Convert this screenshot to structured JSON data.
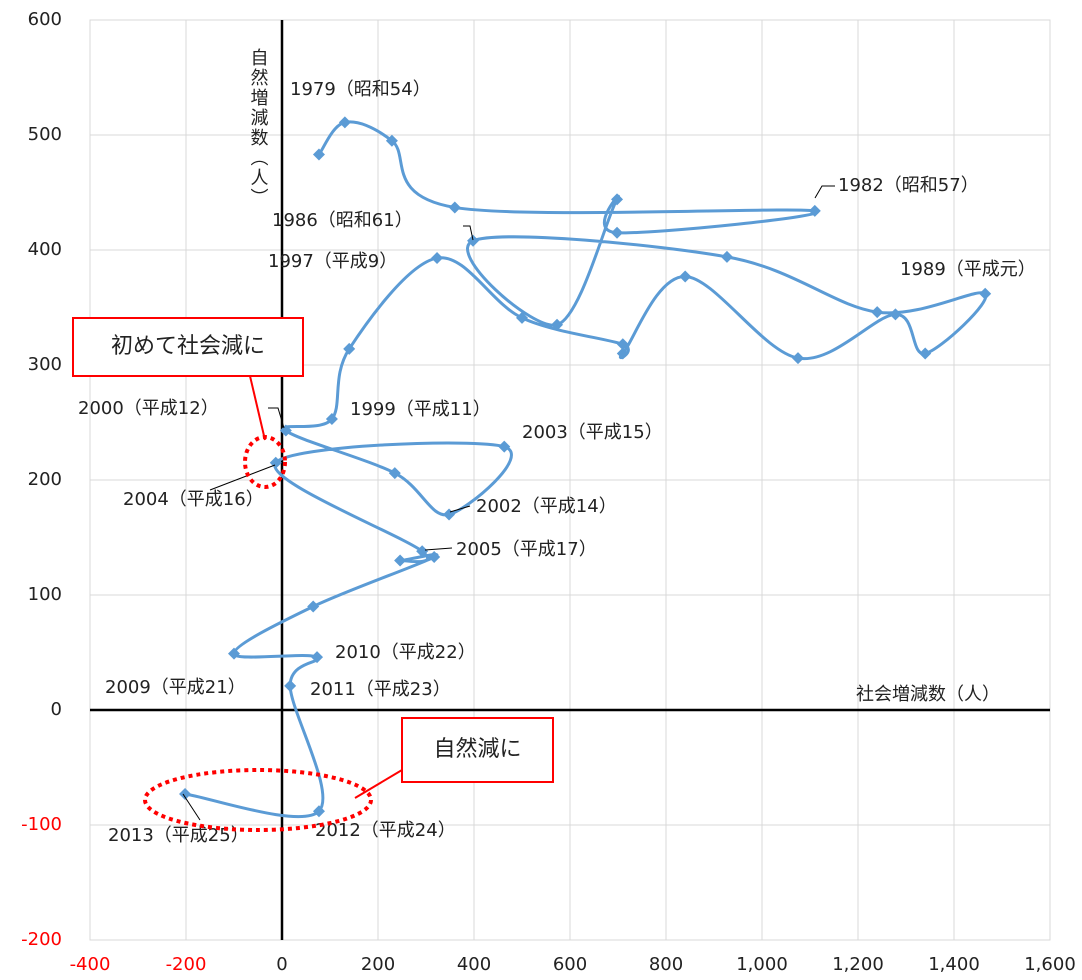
{
  "chart_data": {
    "type": "scatter",
    "line": "smooth",
    "x_label": "社会増減数（人）",
    "y_label": "自然増減数（人）",
    "color": "#5b9bd5",
    "x": [
      77,
      131,
      229,
      360,
      1110,
      698,
      698,
      573,
      398,
      927,
      1240,
      1465,
      1340,
      1278,
      1075,
      840,
      710,
      710,
      500,
      323,
      140,
      104,
      8,
      235,
      348,
      463,
      -13,
      292,
      246,
      317,
      65,
      -100,
      73,
      17,
      77,
      -202
    ],
    "values": [
      483,
      511,
      495,
      437,
      434,
      415,
      444,
      335,
      408,
      394,
      346,
      362,
      310,
      344,
      306,
      377,
      310,
      318,
      341,
      393,
      314,
      253,
      243,
      206,
      170,
      229,
      215,
      138,
      130,
      133,
      90,
      49,
      46,
      21,
      -88,
      -73
    ],
    "annotations": [
      "1979（昭和54）",
      "1982（昭和57）",
      "1986（昭和61）",
      "1997（平成9）",
      "1989（平成元）",
      "2000（平成12）",
      "1999（平成11）",
      "2003（平成15）",
      "2004（平成16）",
      "2002（平成14）",
      "2005（平成17）",
      "2010（平成22）",
      "2009（平成21）",
      "2011（平成23）",
      "2013（平成25）",
      "2012（平成24）"
    ],
    "callouts": [
      "初めて社会減に",
      "自然減に"
    ],
    "xlim": [
      -400,
      1600
    ],
    "xticks": [
      -400,
      -200,
      0,
      200,
      400,
      600,
      800,
      {
        "value": 1000,
        "label": "1,000"
      },
      {
        "value": 1200,
        "label": "1,200"
      },
      {
        "value": 1400,
        "label": "1,400"
      },
      {
        "value": 1600,
        "label": "1,600"
      }
    ],
    "ylim": [
      -200,
      600
    ],
    "yticks": [
      -200,
      -100,
      0,
      100,
      200,
      300,
      400,
      500,
      600
    ],
    "grid": true,
    "negative_tick_color": "#ff0000",
    "callout_color": "#ff0000"
  }
}
